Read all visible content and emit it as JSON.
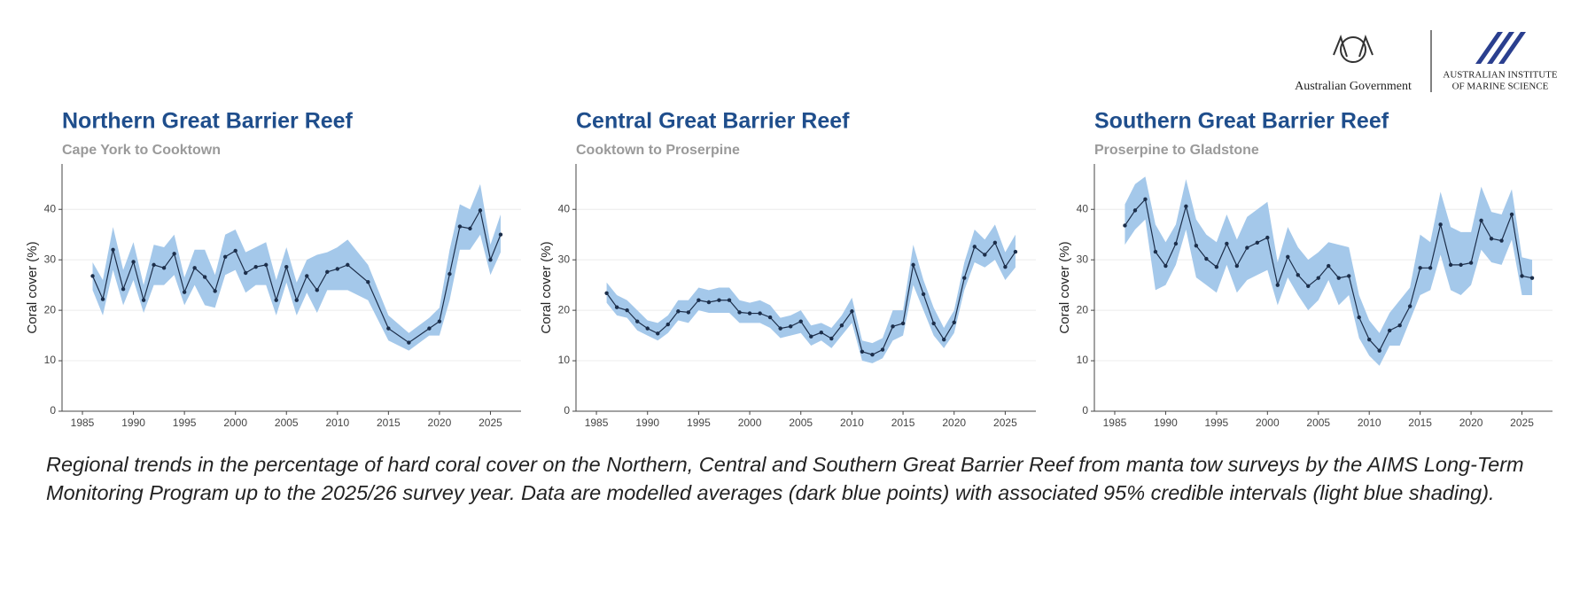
{
  "header": {
    "government": "Australian Government",
    "institute_line1": "AUSTRALIAN INSTITUTE",
    "institute_line2": "OF MARINE SCIENCE"
  },
  "caption": "Regional trends in the percentage of hard coral cover on the Northern, Central and Southern Great Barrier Reef from manta tow surveys by the AIMS Long-Term Monitoring Program up to the 2025/26 survey year. Data are modelled averages (dark blue points) with associated 95% credible intervals (light blue shading).",
  "chart_data": [
    {
      "type": "line",
      "title": "Northern Great Barrier Reef",
      "subtitle": "Cape York to Cooktown",
      "y_label": "Coral cover (%)",
      "x": [
        1986,
        1987,
        1988,
        1989,
        1990,
        1991,
        1992,
        1993,
        1994,
        1995,
        1996,
        1997,
        1998,
        1999,
        2000,
        2001,
        2002,
        2003,
        2004,
        2005,
        2006,
        2007,
        2008,
        2009,
        2010,
        2011,
        2013,
        2015,
        2017,
        2019,
        2020,
        2021,
        2022,
        2023,
        2024,
        2025,
        2026
      ],
      "series": [
        {
          "color": "#1c2e4a",
          "band_color": "#a4c8ea",
          "values": [
            26.8,
            22.2,
            32,
            24.2,
            29.6,
            22,
            29,
            28.4,
            31.2,
            23.6,
            28.4,
            26.6,
            23.8,
            30.6,
            31.8,
            27.4,
            28.6,
            29,
            22,
            28.6,
            22,
            26.8,
            24,
            27.6,
            28.2,
            29,
            25.6,
            16.4,
            13.6,
            16.4,
            17.8,
            27.2,
            36.6,
            36.2,
            39.8,
            30,
            35
          ],
          "lower": [
            24,
            19,
            28,
            21,
            26,
            19.5,
            25,
            25,
            27,
            21,
            25,
            21,
            20.5,
            27,
            28,
            23.5,
            25,
            25,
            19,
            25.5,
            19,
            23.5,
            19.5,
            24,
            24,
            24,
            22,
            14,
            12,
            15,
            15,
            22,
            32,
            32,
            35,
            27,
            31.5
          ],
          "upper": [
            29.5,
            26,
            36.5,
            28,
            33.5,
            25,
            33,
            32.5,
            35,
            26.5,
            32,
            32,
            27,
            35,
            36,
            31.5,
            32.5,
            33.5,
            26,
            32.5,
            25.5,
            30,
            31,
            31.5,
            32.5,
            34,
            29,
            19,
            15.5,
            18.5,
            20.5,
            32,
            41,
            40,
            45,
            33,
            39
          ]
        }
      ],
      "xlim": [
        1983,
        2028
      ],
      "xticks": [
        1985,
        1990,
        1995,
        2000,
        2005,
        2010,
        2015,
        2020,
        2025
      ],
      "ylim": [
        0,
        49
      ],
      "yticks": [
        0,
        10,
        20,
        30,
        40
      ],
      "grid": true
    },
    {
      "type": "line",
      "title": "Central Great Barrier Reef",
      "subtitle": "Cooktown to Proserpine",
      "y_label": "Coral cover (%)",
      "x": [
        1986,
        1987,
        1988,
        1989,
        1990,
        1991,
        1992,
        1993,
        1994,
        1995,
        1996,
        1997,
        1998,
        1999,
        2000,
        2001,
        2002,
        2003,
        2004,
        2005,
        2006,
        2007,
        2008,
        2009,
        2010,
        2011,
        2012,
        2013,
        2014,
        2015,
        2016,
        2017,
        2018,
        2019,
        2020,
        2021,
        2022,
        2023,
        2024,
        2025,
        2026
      ],
      "series": [
        {
          "color": "#1c2e4a",
          "band_color": "#a4c8ea",
          "values": [
            23.4,
            20.6,
            20,
            17.8,
            16.4,
            15.4,
            17.2,
            19.8,
            19.6,
            22,
            21.6,
            22,
            22,
            19.6,
            19.4,
            19.4,
            18.6,
            16.4,
            16.8,
            17.8,
            14.8,
            15.6,
            14.4,
            17,
            19.8,
            11.8,
            11.2,
            12.2,
            16.8,
            17.4,
            29,
            23.2,
            17.4,
            14.2,
            17.6,
            26.4,
            32.6,
            31,
            33.4,
            28.6,
            31.6
          ],
          "lower": [
            21.5,
            19,
            18.5,
            16,
            15,
            14,
            15.5,
            18,
            17.5,
            20,
            19.5,
            19.5,
            19.5,
            17.5,
            17.5,
            17.5,
            16.5,
            14.5,
            15,
            15.5,
            13,
            14,
            12.5,
            15,
            17.5,
            10,
            9.5,
            10.5,
            14,
            15,
            25,
            20,
            15,
            12.5,
            15.5,
            24,
            29.5,
            28.5,
            30,
            26,
            28.5
          ],
          "upper": [
            25.5,
            23,
            22,
            20,
            18,
            17.5,
            19,
            22,
            22,
            24.5,
            24,
            24.5,
            24.5,
            22,
            21.5,
            22,
            21,
            18.5,
            19,
            20,
            17,
            17.5,
            16.5,
            19,
            22.5,
            14,
            13.5,
            14.5,
            20,
            20,
            33,
            26,
            20.5,
            16.5,
            20,
            29.5,
            36,
            34,
            37,
            31.5,
            35
          ]
        }
      ],
      "xlim": [
        1983,
        2028
      ],
      "xticks": [
        1985,
        1990,
        1995,
        2000,
        2005,
        2010,
        2015,
        2020,
        2025
      ],
      "ylim": [
        0,
        49
      ],
      "yticks": [
        0,
        10,
        20,
        30,
        40
      ],
      "grid": true
    },
    {
      "type": "line",
      "title": "Southern Great Barrier Reef",
      "subtitle": "Proserpine to Gladstone",
      "y_label": "Coral cover (%)",
      "x": [
        1986,
        1987,
        1988,
        1989,
        1990,
        1991,
        1992,
        1993,
        1994,
        1995,
        1996,
        1997,
        1998,
        1999,
        2000,
        2001,
        2002,
        2003,
        2004,
        2005,
        2006,
        2007,
        2008,
        2009,
        2010,
        2011,
        2012,
        2013,
        2014,
        2015,
        2016,
        2017,
        2018,
        2019,
        2020,
        2021,
        2022,
        2023,
        2024,
        2025,
        2026
      ],
      "series": [
        {
          "color": "#1c2e4a",
          "band_color": "#a4c8ea",
          "values": [
            36.8,
            39.8,
            42,
            31.6,
            28.8,
            33.2,
            40.6,
            32.8,
            30.2,
            28.6,
            33.2,
            28.8,
            32.4,
            33.4,
            34.4,
            25,
            30.6,
            27,
            24.8,
            26.4,
            28.8,
            26.4,
            26.8,
            18.6,
            14.2,
            12,
            16,
            17,
            20.8,
            28.4,
            28.4,
            37,
            29,
            29,
            29.4,
            37.8,
            34.2,
            33.8,
            39,
            26.8,
            26.4
          ],
          "lower": [
            33,
            36,
            38,
            24,
            25,
            29,
            36,
            26.5,
            25,
            23.5,
            29,
            23.5,
            26,
            27,
            28,
            21,
            26.5,
            23,
            20,
            22,
            26,
            21,
            23,
            14.5,
            11,
            9,
            13,
            13,
            18,
            23,
            24,
            31,
            24,
            23,
            25,
            32,
            29.5,
            29,
            34,
            23,
            23
          ],
          "upper": [
            41,
            45,
            46.5,
            37,
            33.5,
            37,
            46,
            38,
            35,
            33.5,
            39,
            34,
            38.5,
            40,
            41.5,
            29.5,
            36.5,
            32.5,
            30,
            31.5,
            33.5,
            33,
            32.5,
            23,
            18,
            15.5,
            19.5,
            22,
            24.5,
            35,
            33.5,
            43.5,
            36.5,
            35.5,
            35.5,
            44.5,
            39.5,
            39,
            44,
            30.5,
            30
          ]
        }
      ],
      "xlim": [
        1983,
        2028
      ],
      "xticks": [
        1985,
        1990,
        1995,
        2000,
        2005,
        2010,
        2015,
        2020,
        2025
      ],
      "ylim": [
        0,
        49
      ],
      "yticks": [
        0,
        10,
        20,
        30,
        40
      ],
      "grid": true
    }
  ]
}
